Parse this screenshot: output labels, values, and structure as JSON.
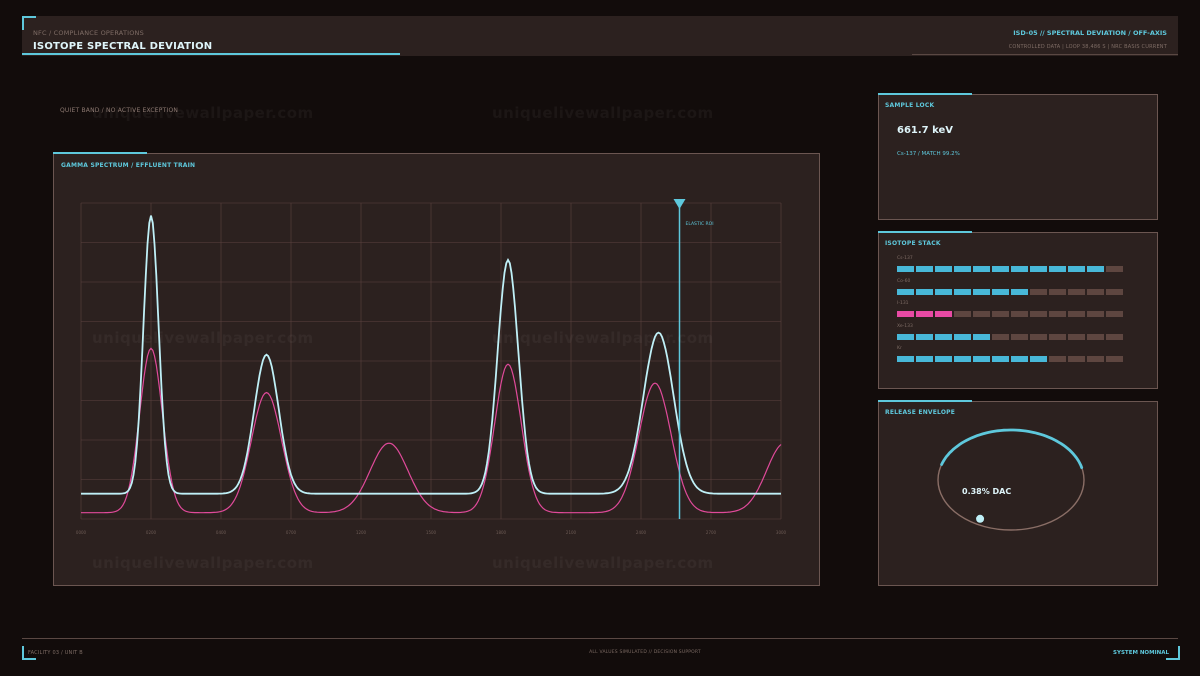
{
  "header": {
    "breadcrumb": "NFC / COMPLIANCE OPERATIONS",
    "title": "ISOTOPE SPECTRAL DEVIATION",
    "right_top": "ISD-05  //  SPECTRAL DEVIATION / OFF-AXIS",
    "right_bottom": "CONTROLLED DATA  |  LOOP 38,486 S  |  NRC BASIS CURRENT"
  },
  "status_line": "QUIET BAND / NO ACTIVE EXCEPTION",
  "watermark": "uniquelivewallpaper.com",
  "spectrum": {
    "title": "GAMMA SPECTRUM / EFFLUENT TRAIN",
    "marker_label": "ELASTIC ROI",
    "colors": {
      "primary": "#bff0f7",
      "secondary": "#e04a9a",
      "marker": "#5ec8dc",
      "grid": "#5c4340"
    }
  },
  "chart_data": {
    "type": "line",
    "x": [
      0,
      1,
      2,
      3,
      4,
      5,
      6,
      7,
      8,
      9,
      10
    ],
    "x_tick_labels": [
      "0000",
      "0200",
      "0400",
      "0700",
      "1200",
      "1500",
      "1800",
      "2100",
      "2400",
      "2700",
      "3000"
    ],
    "marker_x": 8.55,
    "ylim": [
      0,
      1
    ],
    "grid": true,
    "series": [
      {
        "values": [
          0.08,
          0.05,
          0.05,
          0.05,
          0.05,
          0.05,
          0.05,
          0.05,
          0.05,
          0.05,
          0.05
        ],
        "peaks": [
          {
            "x": 1.0,
            "h": 0.88,
            "w": 0.16
          },
          {
            "x": 2.65,
            "h": 0.44,
            "w": 0.26
          },
          {
            "x": 6.1,
            "h": 0.74,
            "w": 0.22
          },
          {
            "x": 8.25,
            "h": 0.51,
            "w": 0.32
          }
        ],
        "base": 0.08
      },
      {
        "values": [
          0.03,
          0.03,
          0.03,
          0.03,
          0.03,
          0.03,
          0.03,
          0.03,
          0.03,
          0.03,
          0.03
        ],
        "peaks": [
          {
            "x": 1.0,
            "h": 0.52,
            "w": 0.24
          },
          {
            "x": 2.65,
            "h": 0.38,
            "w": 0.32
          },
          {
            "x": 4.4,
            "h": 0.22,
            "w": 0.4
          },
          {
            "x": 6.1,
            "h": 0.47,
            "w": 0.28
          },
          {
            "x": 8.2,
            "h": 0.41,
            "w": 0.34
          },
          {
            "x": 10.05,
            "h": 0.22,
            "w": 0.38
          }
        ],
        "base": 0.02
      }
    ]
  },
  "sample_lock": {
    "title": "SAMPLE LOCK",
    "value": "661.7 keV",
    "sub": "Cs-137 / MATCH 99.2%"
  },
  "isotope_stack": {
    "title": "ISOTOPE STACK",
    "items": [
      {
        "label": "Cs-137",
        "filled": 11,
        "color": "#48b8d8"
      },
      {
        "label": "Co-60",
        "filled": 7,
        "color": "#48b8d8"
      },
      {
        "label": "I-131",
        "filled": 3,
        "color": "#e84aa4"
      },
      {
        "label": "Xe-133",
        "filled": 5,
        "color": "#48b8d8"
      },
      {
        "label": "Kr",
        "filled": 8,
        "color": "#48b8d8"
      }
    ],
    "total_segments": 12
  },
  "release_envelope": {
    "title": "RELEASE ENVELOPE",
    "value": "0.38% DAC",
    "fraction": 0.38
  },
  "footer": {
    "left": "FACILITY 03  /  UNIT B",
    "center": "ALL VALUES SIMULATED  //  DECISION SUPPORT",
    "right": "SYSTEM NOMINAL"
  }
}
